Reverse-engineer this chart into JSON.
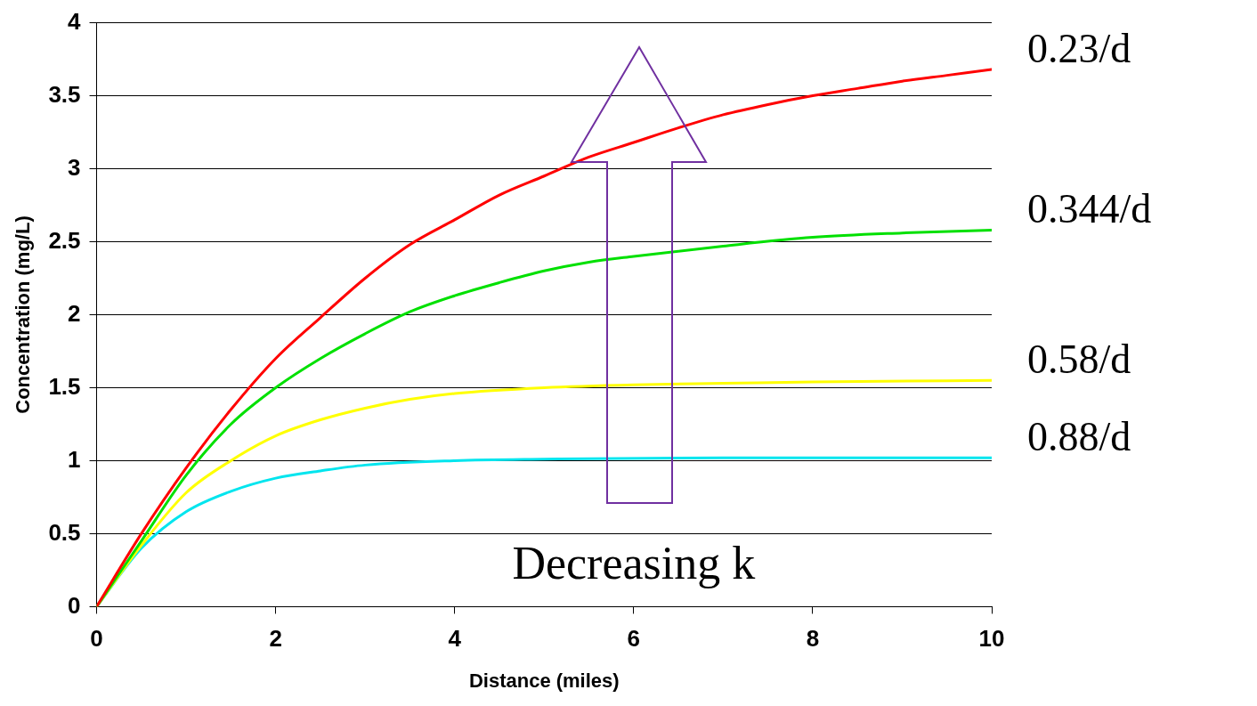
{
  "chart_data": {
    "type": "line",
    "xlabel": "Distance (miles)",
    "ylabel": "Concentration (mg/L)",
    "xlim": [
      0,
      10
    ],
    "xticks": [
      0,
      2,
      4,
      6,
      8,
      10
    ],
    "ylim": [
      0,
      4
    ],
    "yticks": [
      0,
      0.5,
      1,
      1.5,
      2,
      2.5,
      3,
      3.5,
      4
    ],
    "grid": "y",
    "legend": false,
    "marker": "none",
    "line_style": "solid",
    "annotations": [
      "Decreasing k"
    ],
    "series": [
      {
        "name": "0.23/d",
        "color": "#ff0000",
        "x": [
          0,
          0.5,
          1,
          1.5,
          2,
          2.5,
          3,
          3.5,
          4,
          4.5,
          5,
          5.5,
          6,
          6.5,
          7,
          7.5,
          8,
          8.5,
          9,
          9.5,
          10
        ],
        "values": [
          0,
          0.5,
          0.95,
          1.35,
          1.7,
          1.98,
          2.25,
          2.48,
          2.65,
          2.82,
          2.95,
          3.08,
          3.18,
          3.28,
          3.37,
          3.44,
          3.5,
          3.55,
          3.6,
          3.64,
          3.68
        ]
      },
      {
        "name": "0.344/d",
        "color": "#00e000",
        "x": [
          0,
          0.5,
          1,
          1.5,
          2,
          2.5,
          3,
          3.5,
          4,
          4.5,
          5,
          5.5,
          6,
          7,
          8,
          9,
          10
        ],
        "values": [
          0,
          0.45,
          0.9,
          1.25,
          1.5,
          1.7,
          1.87,
          2.02,
          2.13,
          2.22,
          2.3,
          2.36,
          2.4,
          2.47,
          2.53,
          2.56,
          2.58
        ]
      },
      {
        "name": "0.58/d",
        "color": "#ffff00",
        "x": [
          0,
          0.5,
          1,
          1.5,
          2,
          2.5,
          3,
          3.5,
          4,
          5,
          6,
          7,
          8,
          10
        ],
        "values": [
          0,
          0.42,
          0.78,
          1.0,
          1.17,
          1.28,
          1.36,
          1.42,
          1.46,
          1.5,
          1.52,
          1.53,
          1.54,
          1.55
        ]
      },
      {
        "name": "0.88/d",
        "color": "#00e5ee",
        "x": [
          0,
          0.5,
          1,
          1.5,
          2,
          2.5,
          3,
          4,
          5,
          7,
          10
        ],
        "values": [
          0,
          0.4,
          0.65,
          0.79,
          0.88,
          0.93,
          0.97,
          1.0,
          1.01,
          1.02,
          1.02
        ]
      }
    ]
  }
}
